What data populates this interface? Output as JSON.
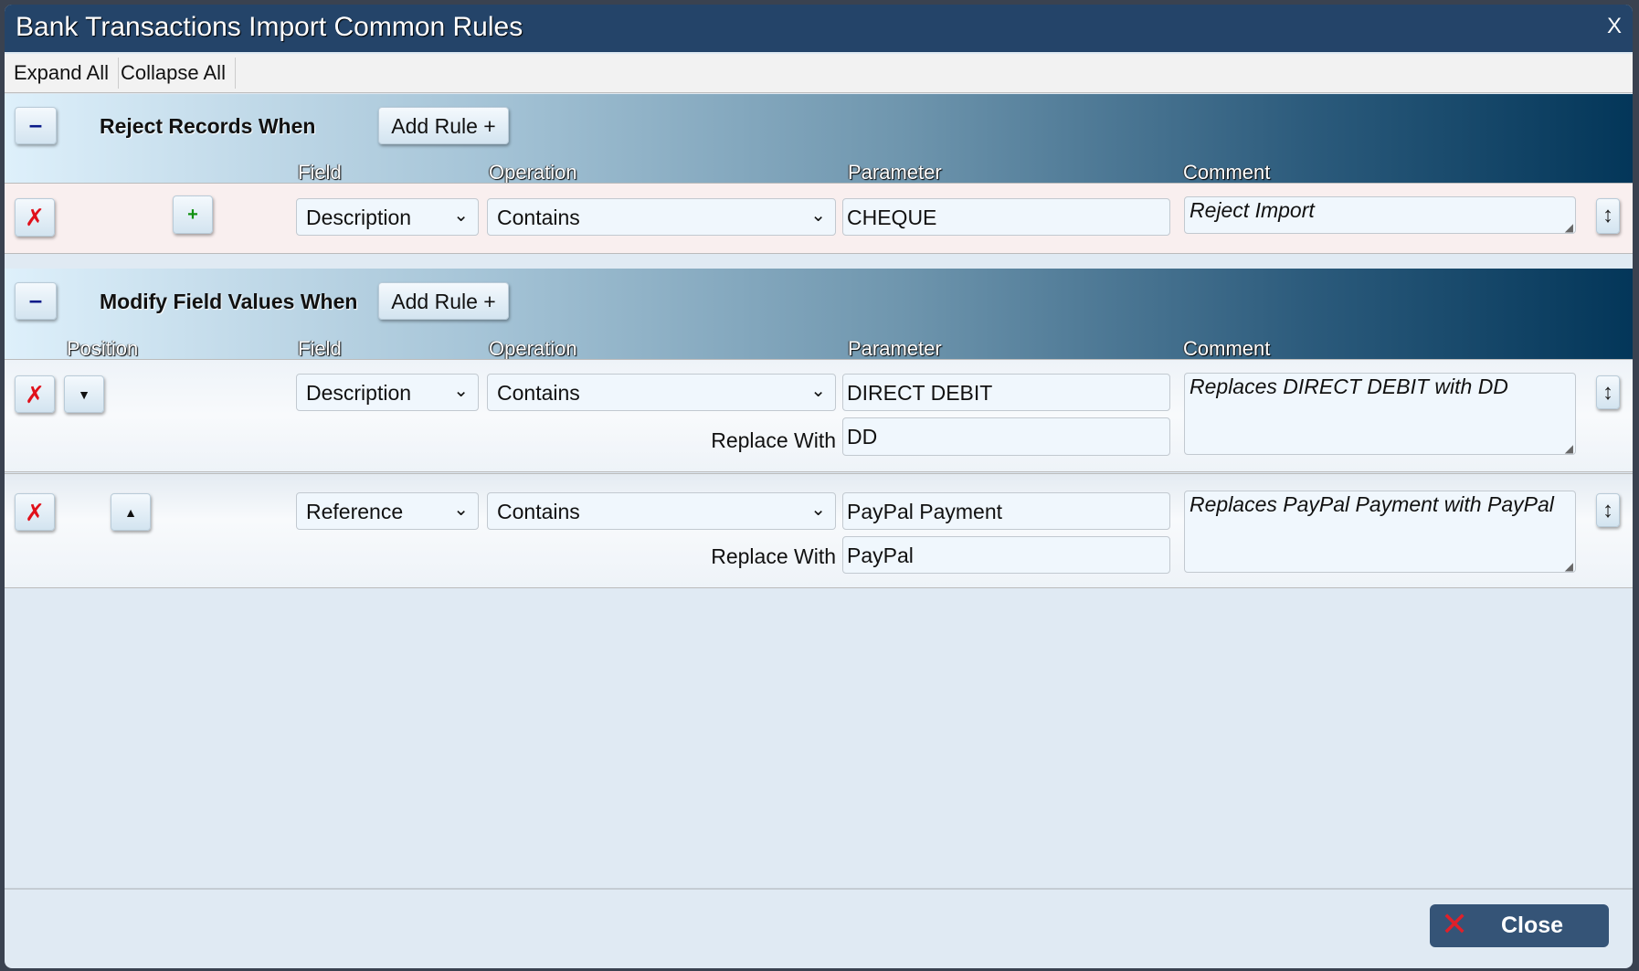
{
  "window": {
    "title": "Bank Transactions Import Common Rules",
    "close_label": "X"
  },
  "toolbar": {
    "expand_all": "Expand All",
    "collapse_all": "Collapse All"
  },
  "sections": [
    {
      "title": "Reject Records When",
      "collapse_label": "–",
      "add_rule": "Add Rule +",
      "columns": {
        "field": "Field",
        "operation": "Operation",
        "parameter": "Parameter",
        "comment": "Comment"
      },
      "rows": [
        {
          "delete": "✗",
          "action": "+",
          "field": "Description",
          "operation": "Contains",
          "parameter": "CHEQUE",
          "comment": "Reject Import",
          "resize": "↕"
        }
      ]
    },
    {
      "title": "Modify Field Values When",
      "collapse_label": "–",
      "add_rule": "Add Rule +",
      "columns": {
        "position": "Position",
        "field": "Field",
        "operation": "Operation",
        "parameter": "Parameter",
        "comment": "Comment"
      },
      "rows": [
        {
          "delete": "✗",
          "move": "▼",
          "field": "Description",
          "operation": "Contains",
          "parameter": "DIRECT DEBIT",
          "replace_label": "Replace With",
          "replace_with": "DD",
          "comment": "Replaces DIRECT DEBIT with DD",
          "resize": "↕"
        },
        {
          "delete": "✗",
          "move": "▲",
          "field": "Reference",
          "operation": "Contains",
          "parameter": "PayPal Payment",
          "replace_label": "Replace With",
          "replace_with": "PayPal",
          "comment": "Replaces PayPal Payment with PayPal",
          "resize": "↕"
        }
      ]
    }
  ],
  "footer": {
    "close_label": "Close",
    "close_icon": "✕"
  },
  "colors": {
    "titlebar": "#244469",
    "close_button": "#355477",
    "delete_icon": "#e0101a"
  }
}
